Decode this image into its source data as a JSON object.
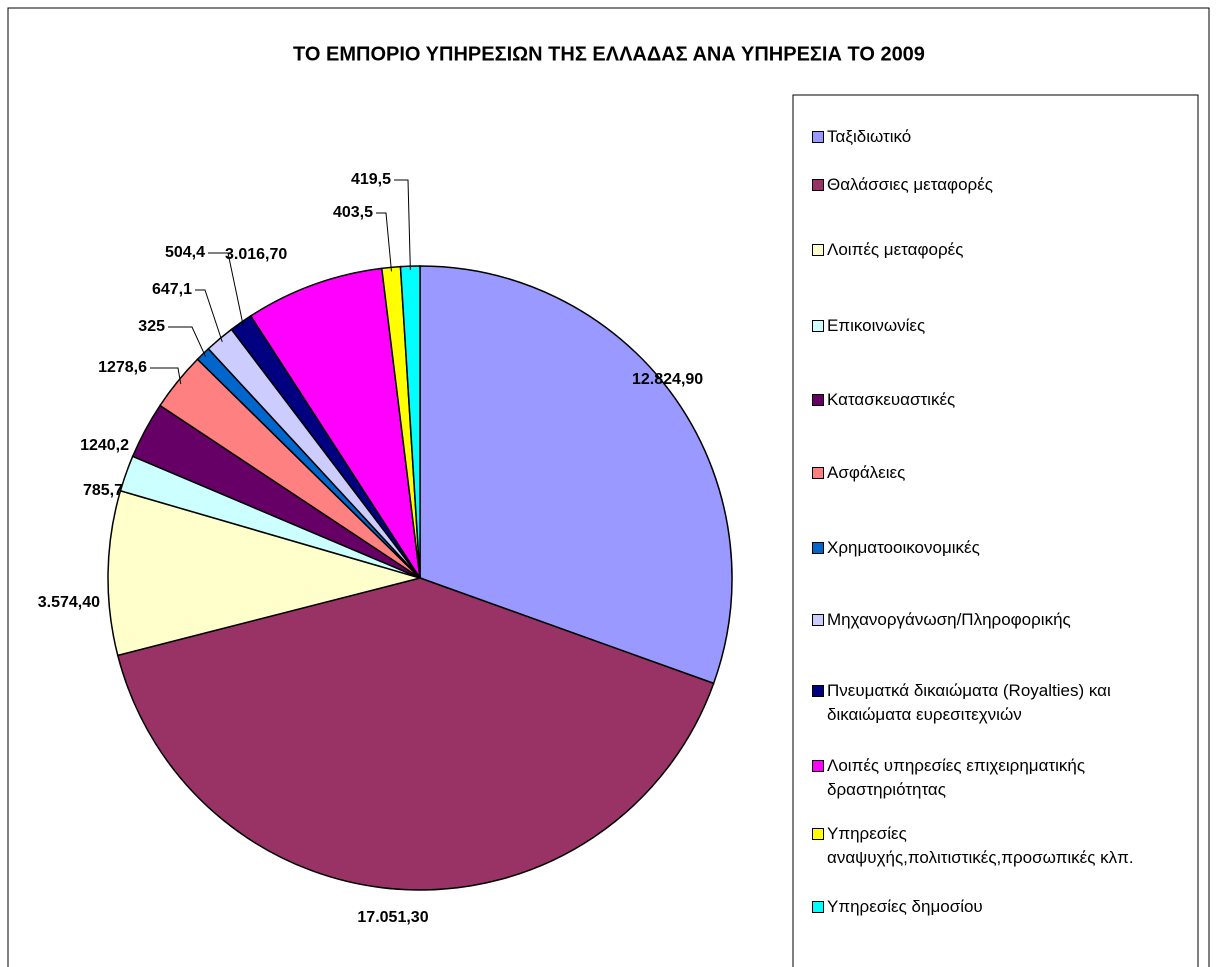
{
  "chart_data": {
    "type": "pie",
    "title": "ΤΟ ΕΜΠΟΡΙΟ ΥΠΗΡΕΣΙΩΝ ΤΗΣ ΕΛΛΑΔΑΣ ΑΝΑ ΥΠΗΡΕΣΙΑ ΤΟ 2009",
    "categories": [
      "Ταξιδιωτικό",
      "Θαλάσσιες μεταφορές",
      "Λοιπές μεταφορές",
      "Επικοινωνίες",
      "Κατασκευαστικές",
      "Ασφάλειες",
      "Χρηματοοικονομικές",
      "Μηχανοργάνωση/Πληροφορικής",
      "Πνευματκά δικαιώματα (Royalties) και δικαιώματα ευρεσιτεχνιών",
      "Λοιπές υπηρεσίες επιχειρηματικής δραστηριότητας",
      "Υπηρεσίες αναψυχής,πολιτιστικές,προσωπικές κλπ.",
      "Υπηρεσίες δημοσίου"
    ],
    "values": [
      12824.9,
      17051.3,
      3574.4,
      785.7,
      1240.2,
      1278.6,
      325,
      647.1,
      504.4,
      3016.7,
      403.5,
      419.5
    ],
    "value_labels": [
      "12.824,90",
      "17.051,30",
      "3.574,40",
      "785,7",
      "1240,2",
      "1278,6",
      "325",
      "647,1",
      "504,4",
      "3.016,70",
      "403,5",
      "419,5"
    ],
    "colors": [
      "#9999ff",
      "#993366",
      "#ffffcc",
      "#ccffff",
      "#660066",
      "#ff8080",
      "#0066cc",
      "#ccccff",
      "#000080",
      "#ff00ff",
      "#ffff00",
      "#00ffff"
    ],
    "legend": "right"
  }
}
